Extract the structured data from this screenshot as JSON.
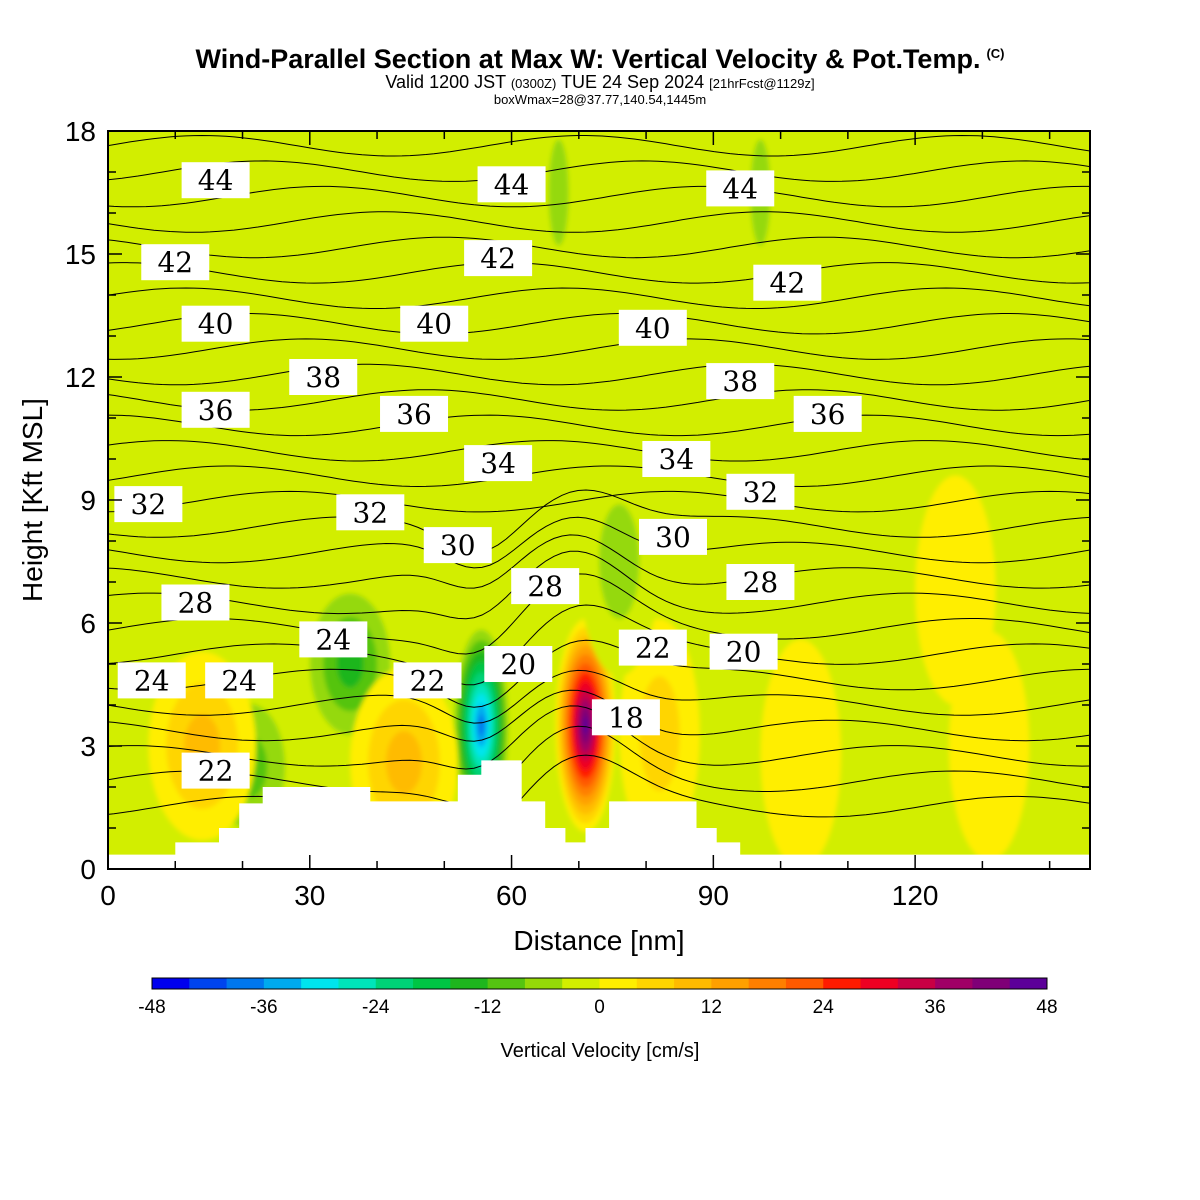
{
  "title": "Wind-Parallel Section at Max W: Vertical Velocity & Pot.Temp.",
  "title_mark": "(C)",
  "subtitle": {
    "valid": "Valid 1200 JST",
    "utc": "(0300Z)",
    "date": "TUE 24 Sep 2024",
    "fcst": "[21hrFcst@1129z]"
  },
  "subtitle2": "boxWmax=28@37.77,140.54,1445m",
  "colorbar": {
    "label": "Vertical Velocity [cm/s]",
    "ticks": [
      "-48",
      "-36",
      "-24",
      "-12",
      "0",
      "12",
      "24",
      "36",
      "48"
    ],
    "colors": [
      "#0000ee",
      "#0044ee",
      "#0077ee",
      "#00aaee",
      "#00e5ee",
      "#00e5ba",
      "#00d277",
      "#00c544",
      "#1eb61e",
      "#55c411",
      "#95d908",
      "#d2ee00",
      "#ffee00",
      "#ffd500",
      "#ffbb00",
      "#ffa000",
      "#ff7f00",
      "#ff5a00",
      "#ff1b00",
      "#ee0022",
      "#c80044",
      "#a00066",
      "#7f0077",
      "#5c0099"
    ]
  },
  "chart_data": {
    "type": "heatmap",
    "title": "Wind-Parallel Section at Max W: Vertical Velocity & Pot.Temp.",
    "xlabel": "Distance [nm]",
    "ylabel": "Height [Kft MSL]",
    "xlim": [
      0,
      146
    ],
    "ylim": [
      0,
      18
    ],
    "x_ticks": [
      "0",
      "30",
      "60",
      "90",
      "120"
    ],
    "y_ticks": [
      "0",
      "3",
      "6",
      "9",
      "12",
      "15",
      "18"
    ],
    "fill_variable": "Vertical Velocity [cm/s]",
    "fill_range": [
      -48,
      48
    ],
    "fill_step": 4,
    "contour_variable": "Potential temperature",
    "velocity_features": [
      {
        "x": 71,
        "y": 3.5,
        "value": 48,
        "sense": "updraft core"
      },
      {
        "x": 55.5,
        "y": 3.5,
        "value": -40,
        "sense": "downdraft core"
      },
      {
        "x": 36,
        "y": 5.0,
        "value": -14,
        "sense": "downdraft"
      },
      {
        "x": 21,
        "y": 2.5,
        "value": -12,
        "sense": "downdraft"
      },
      {
        "x": 14,
        "y": 3.0,
        "value": 10,
        "sense": "updraft"
      },
      {
        "x": 44,
        "y": 2.6,
        "value": 10,
        "sense": "updraft"
      },
      {
        "x": 82,
        "y": 3.3,
        "value": 8,
        "sense": "updraft"
      },
      {
        "x": 103,
        "y": 2.8,
        "value": 3,
        "sense": "updraft"
      },
      {
        "x": 131,
        "y": 3.0,
        "value": 2,
        "sense": "updraft"
      },
      {
        "x": 126,
        "y": 6.8,
        "value": 2,
        "sense": "updraft"
      },
      {
        "x": 67,
        "y": 16.5,
        "value": -5,
        "sense": "downdraft"
      },
      {
        "x": 97,
        "y": 16.5,
        "value": -5,
        "sense": "downdraft"
      },
      {
        "x": 40,
        "y": 17,
        "value": -4,
        "sense": "downdraft"
      },
      {
        "x": 3,
        "y": 7.3,
        "value": -4,
        "sense": "downdraft"
      },
      {
        "x": 76,
        "y": 7.5,
        "value": -6,
        "sense": "downdraft"
      }
    ],
    "terrain_nm_kft": [
      [
        0,
        0.35
      ],
      [
        10,
        0.35
      ],
      [
        10,
        0.65
      ],
      [
        16.5,
        0.65
      ],
      [
        16.5,
        1.0
      ],
      [
        19.5,
        1.0
      ],
      [
        19.5,
        1.6
      ],
      [
        23,
        1.6
      ],
      [
        23,
        2.0
      ],
      [
        39,
        2.0
      ],
      [
        39,
        1.65
      ],
      [
        52,
        1.65
      ],
      [
        52,
        2.3
      ],
      [
        55.5,
        2.3
      ],
      [
        55.5,
        2.65
      ],
      [
        61.5,
        2.65
      ],
      [
        61.5,
        1.65
      ],
      [
        65,
        1.65
      ],
      [
        65,
        1.0
      ],
      [
        68,
        1.0
      ],
      [
        68,
        0.65
      ],
      [
        71,
        0.65
      ],
      [
        71,
        1.0
      ],
      [
        74.5,
        1.0
      ],
      [
        74.5,
        1.65
      ],
      [
        87.5,
        1.65
      ],
      [
        87.5,
        1.0
      ],
      [
        90.5,
        1.0
      ],
      [
        90.5,
        0.65
      ],
      [
        94,
        0.65
      ],
      [
        94,
        0.35
      ],
      [
        146,
        0.35
      ]
    ],
    "theta_labels": [
      {
        "text": "44",
        "x": 16,
        "y": 16.8
      },
      {
        "text": "44",
        "x": 60,
        "y": 16.7
      },
      {
        "text": "44",
        "x": 94,
        "y": 16.6
      },
      {
        "text": "42",
        "x": 10,
        "y": 14.8
      },
      {
        "text": "42",
        "x": 58,
        "y": 14.9
      },
      {
        "text": "42",
        "x": 101,
        "y": 14.3
      },
      {
        "text": "40",
        "x": 16,
        "y": 13.3
      },
      {
        "text": "40",
        "x": 48.5,
        "y": 13.3
      },
      {
        "text": "40",
        "x": 81,
        "y": 13.2
      },
      {
        "text": "38",
        "x": 32,
        "y": 12.0
      },
      {
        "text": "38",
        "x": 94,
        "y": 11.9
      },
      {
        "text": "36",
        "x": 16,
        "y": 11.2
      },
      {
        "text": "36",
        "x": 45.5,
        "y": 11.1
      },
      {
        "text": "36",
        "x": 107,
        "y": 11.1
      },
      {
        "text": "34",
        "x": 58,
        "y": 9.9
      },
      {
        "text": "34",
        "x": 84.5,
        "y": 10.0
      },
      {
        "text": "32",
        "x": 6,
        "y": 8.9
      },
      {
        "text": "32",
        "x": 39,
        "y": 8.7
      },
      {
        "text": "32",
        "x": 97,
        "y": 9.2
      },
      {
        "text": "30",
        "x": 52,
        "y": 7.9
      },
      {
        "text": "30",
        "x": 84,
        "y": 8.1
      },
      {
        "text": "28",
        "x": 13,
        "y": 6.5
      },
      {
        "text": "28",
        "x": 65,
        "y": 6.9
      },
      {
        "text": "28",
        "x": 97,
        "y": 7.0
      },
      {
        "text": "24",
        "x": 6.5,
        "y": 4.6
      },
      {
        "text": "24",
        "x": 19.5,
        "y": 4.6
      },
      {
        "text": "24",
        "x": 33.5,
        "y": 5.6
      },
      {
        "text": "22",
        "x": 47.5,
        "y": 4.6
      },
      {
        "text": "22",
        "x": 81,
        "y": 5.4
      },
      {
        "text": "22",
        "x": 16,
        "y": 2.4
      },
      {
        "text": "20",
        "x": 61,
        "y": 5.0
      },
      {
        "text": "20",
        "x": 94.5,
        "y": 5.3
      },
      {
        "text": "18",
        "x": 77,
        "y": 3.7
      }
    ]
  }
}
